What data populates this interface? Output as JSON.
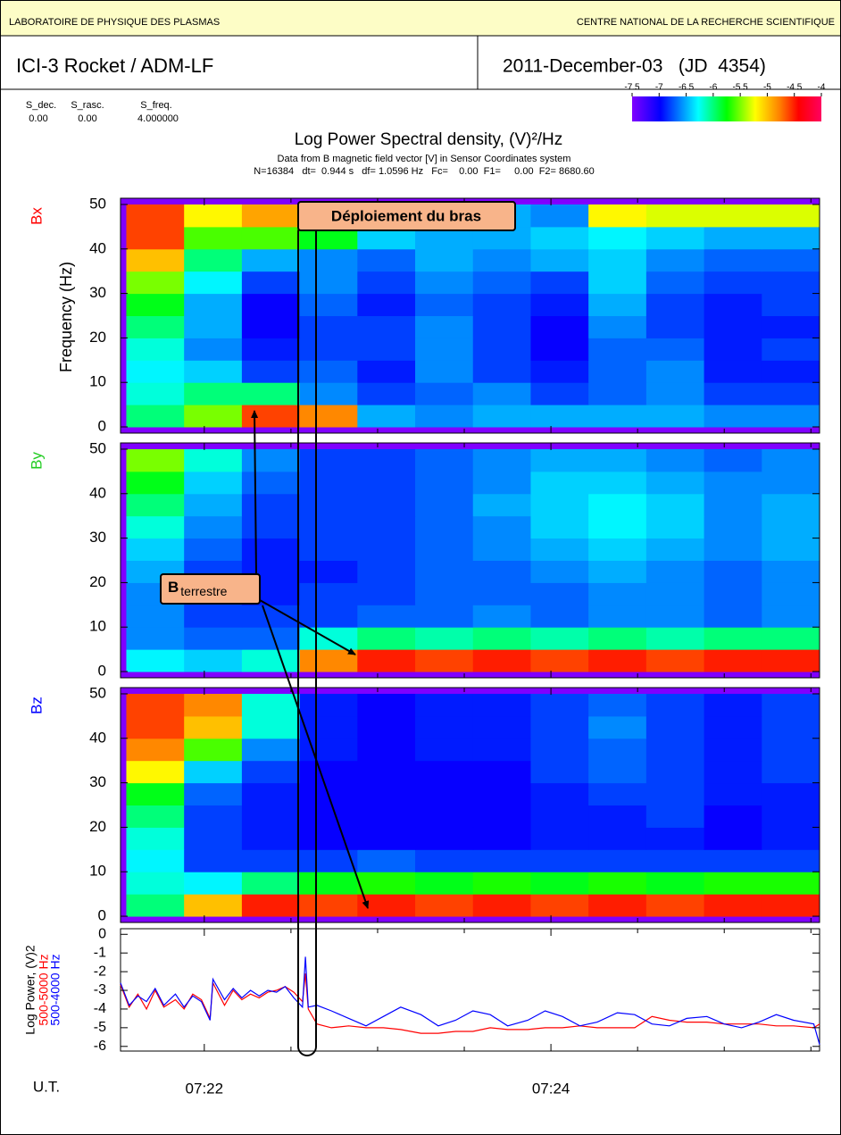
{
  "header": {
    "lab": "LABORATOIRE DE PHYSIQUE DES PLASMAS",
    "org": "CENTRE NATIONAL DE LA RECHERCHE SCIENTIFIQUE",
    "mission": "ICI-3 Rocket / ADM-LF",
    "date": "2011-December-03   (JD  4354)"
  },
  "params": {
    "labels": [
      "S_dec.",
      "S_rasc.",
      "S_freq."
    ],
    "values": [
      "0.00",
      "0.00",
      "4.000000"
    ]
  },
  "title": "Log Power Spectral density, (V)²/Hz",
  "subtitle": "Data from B magnetic field vector [V] in Sensor Coordinates system",
  "info": "N=16384   dt=  0.944 s   df= 1.0596 Hz   Fc=    0.00  F1=     0.00  F2= 8680.60",
  "colorbar": {
    "range": [
      -7.5,
      -4.0
    ],
    "ticks": [
      -7.5,
      -7.0,
      -6.5,
      -6.0,
      -5.5,
      -5.0,
      -4.5,
      -4.0
    ]
  },
  "time_axis": {
    "label": "U.T.",
    "xlim": [
      26491,
      26733
    ],
    "xticks": [
      {
        "value": 26520,
        "label": "07:22"
      },
      {
        "value": 26640,
        "label": "07:24"
      }
    ],
    "xminorticks": [
      26550,
      26580,
      26610,
      26670,
      26700,
      26730
    ],
    "bins": [
      26493,
      26513,
      26533,
      26553,
      26573,
      26593,
      26613,
      26633,
      26653,
      26673,
      26693,
      26713,
      26733
    ]
  },
  "annotations": {
    "deployment": "Déploiement du bras",
    "b_main": "B",
    "b_sub": "terrestre"
  },
  "chart_data": [
    {
      "type": "heatmap",
      "name": "Bx",
      "name_color": "#ff0000",
      "ylabel": "Frequency (Hz)",
      "ylim": [
        -1.4,
        51.4
      ],
      "yticks": [
        0,
        10,
        20,
        30,
        40,
        50
      ],
      "ybins": [
        0,
        5,
        10,
        15,
        20,
        25,
        30,
        35,
        40,
        45,
        50
      ],
      "z": [
        [
          -6.0,
          -5.5,
          -4.6,
          -4.8,
          -6.5,
          -6.6,
          -6.5,
          -6.5,
          -6.5,
          -6.5,
          -6.6,
          -6.6
        ],
        [
          -6.2,
          -6.0,
          -6.0,
          -6.6,
          -6.8,
          -6.7,
          -6.6,
          -6.8,
          -6.7,
          -6.6,
          -6.8,
          -6.8
        ],
        [
          -6.3,
          -6.4,
          -6.8,
          -6.7,
          -6.9,
          -6.6,
          -6.8,
          -6.9,
          -6.7,
          -6.6,
          -6.9,
          -6.9
        ],
        [
          -6.2,
          -6.6,
          -6.9,
          -6.8,
          -6.8,
          -6.6,
          -6.8,
          -7.0,
          -6.7,
          -6.7,
          -6.9,
          -6.8
        ],
        [
          -6.0,
          -6.5,
          -7.0,
          -6.8,
          -6.8,
          -6.6,
          -6.8,
          -7.0,
          -6.6,
          -6.8,
          -6.9,
          -6.9
        ],
        [
          -5.8,
          -6.5,
          -7.0,
          -6.7,
          -6.9,
          -6.7,
          -6.8,
          -6.9,
          -6.5,
          -6.8,
          -6.9,
          -6.8
        ],
        [
          -5.5,
          -6.3,
          -6.8,
          -6.6,
          -6.8,
          -6.6,
          -6.7,
          -6.8,
          -6.4,
          -6.7,
          -6.8,
          -6.8
        ],
        [
          -5.0,
          -6.0,
          -6.5,
          -6.6,
          -6.7,
          -6.5,
          -6.6,
          -6.5,
          -6.4,
          -6.6,
          -6.7,
          -6.7
        ],
        [
          -4.6,
          -5.6,
          -5.6,
          -5.8,
          -6.4,
          -6.5,
          -6.5,
          -6.4,
          -6.3,
          -6.4,
          -6.5,
          -6.5
        ],
        [
          -4.6,
          -5.2,
          -4.9,
          -6.3,
          -6.4,
          -6.5,
          -6.5,
          -6.6,
          -5.2,
          -5.3,
          -5.3,
          -5.3
        ]
      ]
    },
    {
      "type": "heatmap",
      "name": "By",
      "name_color": "#22cc22",
      "ylim": [
        -1.4,
        51.4
      ],
      "yticks": [
        0,
        10,
        20,
        30,
        40,
        50
      ],
      "ybins": [
        0,
        5,
        10,
        15,
        20,
        25,
        30,
        35,
        40,
        45,
        50
      ],
      "z": [
        [
          -6.3,
          -6.4,
          -6.2,
          -4.8,
          -4.5,
          -4.6,
          -4.5,
          -4.6,
          -4.5,
          -4.6,
          -4.5,
          -4.5
        ],
        [
          -6.6,
          -6.7,
          -6.7,
          -6.2,
          -6.0,
          -6.1,
          -6.0,
          -6.1,
          -6.0,
          -6.1,
          -6.0,
          -6.0
        ],
        [
          -6.6,
          -6.8,
          -6.8,
          -6.8,
          -6.7,
          -6.7,
          -6.6,
          -6.7,
          -6.6,
          -6.6,
          -6.7,
          -6.6
        ],
        [
          -6.6,
          -6.8,
          -6.9,
          -6.8,
          -6.8,
          -6.7,
          -6.7,
          -6.7,
          -6.6,
          -6.6,
          -6.7,
          -6.6
        ],
        [
          -6.5,
          -6.8,
          -6.9,
          -6.9,
          -6.8,
          -6.7,
          -6.7,
          -6.6,
          -6.5,
          -6.6,
          -6.7,
          -6.6
        ],
        [
          -6.4,
          -6.7,
          -6.9,
          -6.8,
          -6.8,
          -6.7,
          -6.6,
          -6.5,
          -6.4,
          -6.5,
          -6.6,
          -6.5
        ],
        [
          -6.2,
          -6.6,
          -6.8,
          -6.8,
          -6.8,
          -6.7,
          -6.6,
          -6.4,
          -6.3,
          -6.4,
          -6.6,
          -6.5
        ],
        [
          -6.0,
          -6.5,
          -6.8,
          -6.8,
          -6.8,
          -6.7,
          -6.5,
          -6.4,
          -6.3,
          -6.4,
          -6.6,
          -6.5
        ],
        [
          -5.8,
          -6.4,
          -6.7,
          -6.8,
          -6.8,
          -6.7,
          -6.6,
          -6.4,
          -6.4,
          -6.5,
          -6.6,
          -6.6
        ],
        [
          -5.5,
          -6.2,
          -6.6,
          -6.8,
          -6.8,
          -6.7,
          -6.6,
          -6.5,
          -6.5,
          -6.6,
          -6.7,
          -6.6
        ]
      ]
    },
    {
      "type": "heatmap",
      "name": "Bz",
      "name_color": "#0000ff",
      "ylim": [
        -1.4,
        51.4
      ],
      "yticks": [
        0,
        10,
        20,
        30,
        40,
        50
      ],
      "ybins": [
        0,
        5,
        10,
        15,
        20,
        25,
        30,
        35,
        40,
        45,
        50
      ],
      "z": [
        [
          -6.0,
          -5.0,
          -4.5,
          -4.6,
          -4.5,
          -4.6,
          -4.5,
          -4.6,
          -4.5,
          -4.6,
          -4.5,
          -4.5
        ],
        [
          -6.2,
          -6.3,
          -6.0,
          -5.8,
          -5.7,
          -5.8,
          -5.7,
          -5.8,
          -5.7,
          -5.8,
          -5.7,
          -5.7
        ],
        [
          -6.3,
          -6.8,
          -6.8,
          -6.8,
          -6.7,
          -6.8,
          -6.8,
          -6.8,
          -6.8,
          -6.8,
          -6.8,
          -6.8
        ],
        [
          -6.2,
          -6.8,
          -6.9,
          -7.0,
          -7.0,
          -7.0,
          -7.0,
          -6.9,
          -6.9,
          -6.9,
          -7.0,
          -6.9
        ],
        [
          -6.0,
          -6.8,
          -6.9,
          -7.0,
          -7.0,
          -7.0,
          -7.0,
          -6.9,
          -6.9,
          -6.8,
          -7.0,
          -6.9
        ],
        [
          -5.8,
          -6.7,
          -6.9,
          -7.0,
          -7.0,
          -7.0,
          -7.0,
          -6.9,
          -6.8,
          -6.8,
          -6.9,
          -6.9
        ],
        [
          -5.2,
          -6.4,
          -6.8,
          -7.0,
          -7.0,
          -7.0,
          -7.0,
          -6.8,
          -6.7,
          -6.8,
          -6.9,
          -6.8
        ],
        [
          -4.8,
          -5.6,
          -6.6,
          -6.9,
          -7.0,
          -6.9,
          -6.9,
          -6.8,
          -6.7,
          -6.8,
          -6.9,
          -6.8
        ],
        [
          -4.6,
          -5.0,
          -6.2,
          -6.9,
          -7.0,
          -6.9,
          -6.9,
          -6.8,
          -6.6,
          -6.8,
          -6.9,
          -6.8
        ],
        [
          -4.6,
          -4.8,
          -6.2,
          -6.9,
          -7.0,
          -6.9,
          -6.9,
          -6.8,
          -6.7,
          -6.8,
          -6.9,
          -6.8
        ]
      ]
    },
    {
      "type": "line",
      "ylabel": "Log Power, (V)2",
      "ylim": [
        -6.25,
        0.3
      ],
      "yticks": [
        0,
        -1,
        -2,
        -3,
        -4,
        -5,
        -6
      ],
      "x": [
        26491,
        26494,
        26497,
        26500,
        26503,
        26506,
        26510,
        26513,
        26516,
        26519,
        26522,
        26523,
        26527,
        26530,
        26533,
        26536,
        26539,
        26542,
        26545,
        26548,
        26551,
        26554,
        26555,
        26556,
        26559,
        26564,
        26570,
        26576,
        26582,
        26588,
        26595,
        26601,
        26607,
        26613,
        26619,
        26625,
        26632,
        26638,
        26644,
        26650,
        26656,
        26663,
        26669,
        26675,
        26681,
        26687,
        26694,
        26700,
        26706,
        26712,
        26718,
        26724,
        26731,
        26733
      ],
      "series": [
        {
          "name": "500-5000 Hz",
          "color": "#ff0000",
          "values": [
            -2.7,
            -3.9,
            -3.2,
            -4.0,
            -3.0,
            -3.9,
            -3.5,
            -4.0,
            -3.2,
            -3.5,
            -4.5,
            -2.6,
            -3.8,
            -3.0,
            -3.5,
            -3.2,
            -3.4,
            -3.1,
            -3.0,
            -2.8,
            -3.1,
            -3.6,
            -2.1,
            -4.0,
            -4.8,
            -5.0,
            -4.9,
            -5.0,
            -5.0,
            -5.1,
            -5.3,
            -5.3,
            -5.2,
            -5.2,
            -5.0,
            -5.1,
            -5.1,
            -5.0,
            -5.0,
            -4.9,
            -5.0,
            -5.0,
            -5.0,
            -4.4,
            -4.6,
            -4.7,
            -4.7,
            -4.8,
            -4.8,
            -4.8,
            -4.9,
            -4.9,
            -5.0,
            -4.8
          ]
        },
        {
          "name": "500-4000 Hz",
          "color": "#0000ff",
          "values": [
            -2.6,
            -3.8,
            -3.3,
            -3.6,
            -2.9,
            -3.8,
            -3.2,
            -3.9,
            -3.3,
            -3.6,
            -4.6,
            -2.4,
            -3.5,
            -2.9,
            -3.4,
            -3.0,
            -3.3,
            -3.0,
            -3.1,
            -2.8,
            -3.4,
            -3.9,
            -1.2,
            -3.9,
            -3.8,
            -4.1,
            -4.5,
            -4.9,
            -4.4,
            -3.9,
            -4.3,
            -4.9,
            -4.6,
            -4.1,
            -4.3,
            -4.9,
            -4.6,
            -4.1,
            -4.4,
            -4.9,
            -4.7,
            -4.2,
            -4.3,
            -4.8,
            -4.9,
            -4.5,
            -4.4,
            -4.8,
            -5.0,
            -4.7,
            -4.3,
            -4.6,
            -4.8,
            -5.9
          ]
        }
      ]
    }
  ]
}
